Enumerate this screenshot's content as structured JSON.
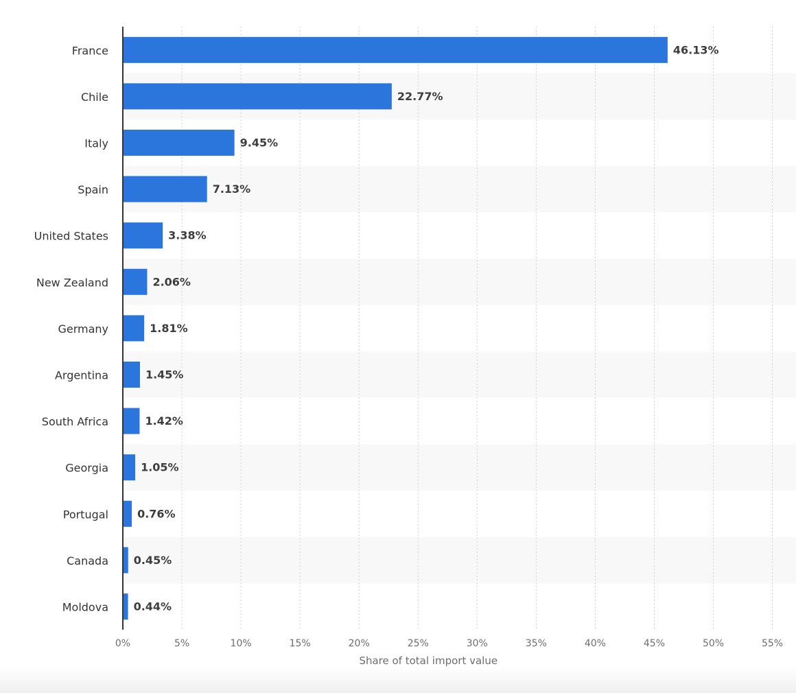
{
  "chart_data": {
    "type": "bar",
    "orientation": "horizontal",
    "categories": [
      "France",
      "Chile",
      "Italy",
      "Spain",
      "United States",
      "New Zealand",
      "Germany",
      "Argentina",
      "South Africa",
      "Georgia",
      "Portugal",
      "Canada",
      "Moldova"
    ],
    "values": [
      46.13,
      22.77,
      9.45,
      7.13,
      3.38,
      2.06,
      1.81,
      1.45,
      1.42,
      1.05,
      0.76,
      0.45,
      0.44
    ],
    "value_labels": [
      "46.13%",
      "22.77%",
      "9.45%",
      "7.13%",
      "3.38%",
      "2.06%",
      "1.81%",
      "1.45%",
      "1.42%",
      "1.05%",
      "0.76%",
      "0.45%",
      "0.44%"
    ],
    "xlabel": "Share of total import value",
    "ylabel": "",
    "xlim": [
      0,
      55
    ],
    "xticks": [
      0,
      5,
      10,
      15,
      20,
      25,
      30,
      35,
      40,
      45,
      50,
      55
    ],
    "xtick_labels": [
      "0%",
      "5%",
      "10%",
      "15%",
      "20%",
      "25%",
      "30%",
      "35%",
      "40%",
      "45%",
      "50%",
      "55%"
    ],
    "grid": true,
    "colors": {
      "bar": "#2a76dd",
      "band": "#f8f8f8",
      "grid": "#cfcfcf",
      "axis": "#333333"
    }
  }
}
